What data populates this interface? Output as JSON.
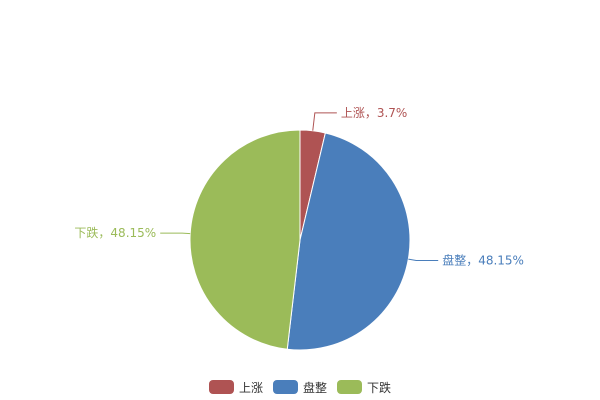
{
  "chart_data": {
    "type": "pie",
    "start_angle": "top, clockwise",
    "label_separator": "，",
    "slices": [
      {
        "name": "上涨",
        "value": 3.7,
        "label": "3.7%",
        "color": "#AF5353"
      },
      {
        "name": "盘整",
        "value": 48.15,
        "label": "48.15%",
        "color": "#4A7EBB"
      },
      {
        "name": "下跌",
        "value": 48.15,
        "label": "48.15%",
        "color": "#9BBB59"
      }
    ],
    "legend": {
      "placement": "bottom",
      "entries": [
        "上涨",
        "盘整",
        "下跌"
      ]
    }
  }
}
